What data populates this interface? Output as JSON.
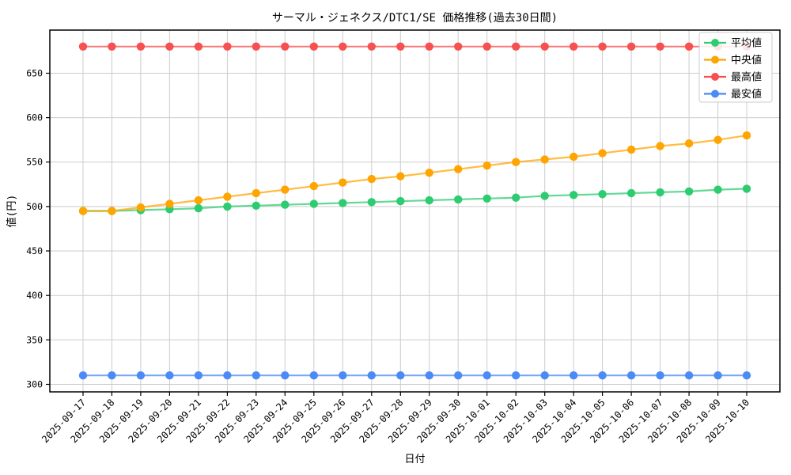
{
  "chart_data": {
    "type": "line",
    "title": "サーマル・ジェネクス/DTC1/SE 価格推移(過去30日間)",
    "xlabel": "日付",
    "ylabel": "値(円)",
    "x": [
      "2025-09-17",
      "2025-09-18",
      "2025-09-19",
      "2025-09-20",
      "2025-09-21",
      "2025-09-22",
      "2025-09-23",
      "2025-09-24",
      "2025-09-25",
      "2025-09-26",
      "2025-09-27",
      "2025-09-28",
      "2025-09-29",
      "2025-09-30",
      "2025-10-01",
      "2025-10-02",
      "2025-10-03",
      "2025-10-04",
      "2025-10-05",
      "2025-10-06",
      "2025-10-07",
      "2025-10-08",
      "2025-10-09",
      "2025-10-10"
    ],
    "series": [
      {
        "name": "平均値",
        "color": "#2ecc71",
        "values": [
          495,
          495,
          496,
          497,
          498,
          500,
          501,
          502,
          503,
          504,
          505,
          506,
          507,
          508,
          509,
          510,
          512,
          513,
          514,
          515,
          516,
          517,
          519,
          520
        ]
      },
      {
        "name": "中央値",
        "color": "#ffa502",
        "values": [
          495,
          495,
          499,
          503,
          507,
          511,
          515,
          519,
          523,
          527,
          531,
          534,
          538,
          542,
          546,
          550,
          553,
          556,
          560,
          564,
          568,
          571,
          575,
          580
        ]
      },
      {
        "name": "最高値",
        "color": "#f65050",
        "values": [
          680,
          680,
          680,
          680,
          680,
          680,
          680,
          680,
          680,
          680,
          680,
          680,
          680,
          680,
          680,
          680,
          680,
          680,
          680,
          680,
          680,
          680,
          680,
          680
        ]
      },
      {
        "name": "最安値",
        "color": "#4c8bf5",
        "values": [
          310,
          310,
          310,
          310,
          310,
          310,
          310,
          310,
          310,
          310,
          310,
          310,
          310,
          310,
          310,
          310,
          310,
          310,
          310,
          310,
          310,
          310,
          310,
          310
        ]
      }
    ],
    "yticks": [
      300,
      350,
      400,
      450,
      500,
      550,
      600,
      650
    ],
    "ylim": [
      291.5,
      698.5
    ],
    "grid": true,
    "legend_position": "top-right",
    "grid_color": "#cccccc"
  }
}
